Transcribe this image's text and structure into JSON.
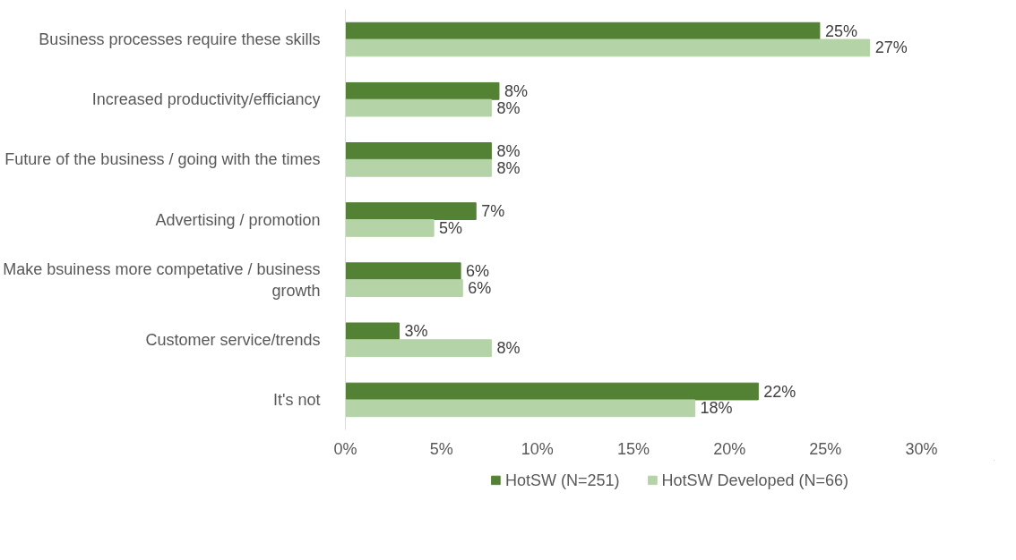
{
  "chart_data": {
    "type": "bar",
    "orientation": "horizontal",
    "categories": [
      "Business processes require these skills",
      "Increased productivity/efficiancy",
      "Future of the business / going with the times",
      "Advertising / promotion",
      "Make bsuiness more competative / business growth",
      "Customer service/trends",
      "It's not"
    ],
    "series": [
      {
        "name": "HotSW (N=251)",
        "color": "#548235",
        "values": [
          24.7,
          8.0,
          7.6,
          6.8,
          6.0,
          2.8,
          21.5
        ],
        "value_labels": [
          "25%",
          "8%",
          "8%",
          "7%",
          "6%",
          "3%",
          "22%"
        ]
      },
      {
        "name": "HotSW Developed (N=66)",
        "color": "#b4d3a6",
        "values": [
          27.3,
          7.6,
          7.6,
          4.6,
          6.1,
          7.6,
          18.2
        ],
        "value_labels": [
          "27%",
          "8%",
          "8%",
          "5%",
          "6%",
          "8%",
          "18%"
        ]
      }
    ],
    "xlim": [
      0,
      30
    ],
    "xticks": [
      {
        "value": 0,
        "label": "0%"
      },
      {
        "value": 5,
        "label": "5%"
      },
      {
        "value": 10,
        "label": "10%"
      },
      {
        "value": 15,
        "label": "15%"
      },
      {
        "value": 20,
        "label": "20%"
      },
      {
        "value": 25,
        "label": "25%"
      },
      {
        "value": 30,
        "label": "30%"
      }
    ],
    "grid": false,
    "legend": "bottom"
  }
}
